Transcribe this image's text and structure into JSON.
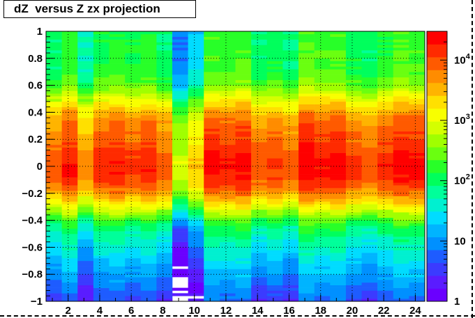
{
  "chart_data": {
    "type": "heatmap",
    "title": "dZ  versus Z zx projection",
    "xlabel": "",
    "ylabel": "",
    "xlim": [
      0.6,
      24.6
    ],
    "ylim": [
      -1,
      1
    ],
    "x_ticks": [
      2,
      4,
      6,
      8,
      10,
      12,
      14,
      16,
      18,
      20,
      22,
      24
    ],
    "x_tick_labels": [
      "2",
      "4",
      "6",
      "8",
      "10",
      "12",
      "14",
      "16",
      "18",
      "20",
      "22",
      "24"
    ],
    "y_ticks": [
      -1,
      -0.8,
      -0.6,
      -0.4,
      -0.2,
      0,
      0.2,
      0.4,
      0.6,
      0.8,
      1
    ],
    "y_tick_labels": [
      "−1",
      "−0.8",
      "−0.6",
      "−0.4",
      "−0.2",
      "0",
      "0.2",
      "0.4",
      "0.6",
      "0.8",
      "1"
    ],
    "z_scale": "log",
    "z_range": [
      1,
      30000
    ],
    "z_ticks": [
      1,
      10,
      100,
      1000,
      10000
    ],
    "z_tick_labels": [
      {
        "base": "1",
        "exp": ""
      },
      {
        "base": "10",
        "exp": ""
      },
      {
        "base": "10",
        "exp": "2"
      },
      {
        "base": "10",
        "exp": "3"
      },
      {
        "base": "10",
        "exp": "4"
      }
    ],
    "grid": true,
    "colorbar": "right",
    "x_bins": 24,
    "y_bins": 100,
    "column_peak_counts": [
      9000,
      18000,
      5000,
      14000,
      16000,
      12000,
      15000,
      9000,
      800,
      2500,
      20000,
      18000,
      22000,
      9000,
      12000,
      8000,
      25000,
      20000,
      22000,
      12000,
      9000,
      15000,
      22000,
      20000
    ],
    "profile": {
      "main_peak_dz": -0.02,
      "main_peak_width": 0.12,
      "secondary_peak_dz": 0.26,
      "secondary_peak_fraction": 0.45,
      "tail_width": 0.42,
      "upper_tail_fraction": 0.22
    },
    "colors": {
      "palette": [
        "#6a00ff",
        "#5a1cff",
        "#3b3bff",
        "#1e5cff",
        "#0090ff",
        "#00b4ff",
        "#00dcff",
        "#00f0d0",
        "#00ff9a",
        "#00ff5c",
        "#28ff28",
        "#6aff10",
        "#a0ff00",
        "#d4ff00",
        "#f8ff00",
        "#ffe000",
        "#ffb400",
        "#ff8c00",
        "#ff5a00",
        "#ff2a00",
        "#ff0000"
      ],
      "grid": "#000000"
    }
  }
}
